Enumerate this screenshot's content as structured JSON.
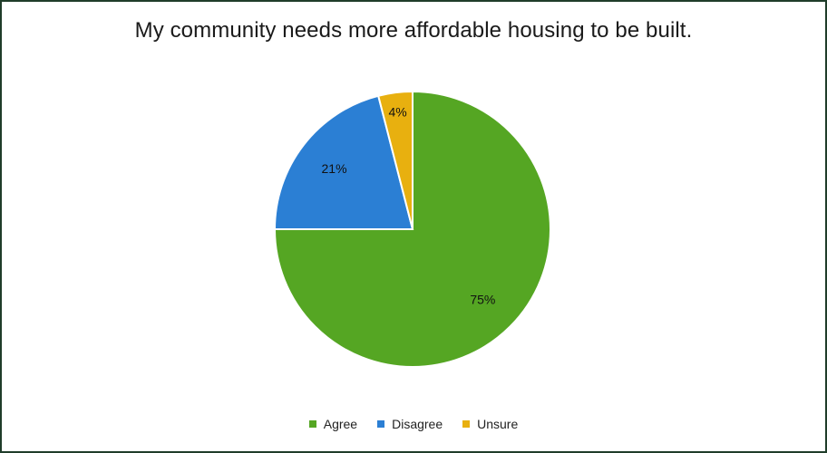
{
  "chart_data": {
    "type": "pie",
    "title": "My community needs more affordable housing to be built.",
    "categories": [
      "Agree",
      "Disagree",
      "Unsure"
    ],
    "values": [
      75,
      21,
      4
    ],
    "labels": [
      "75%",
      "21%",
      "4%"
    ],
    "colors": [
      "#55a623",
      "#2b7fd4",
      "#e8b00f"
    ],
    "legend_position": "bottom"
  }
}
